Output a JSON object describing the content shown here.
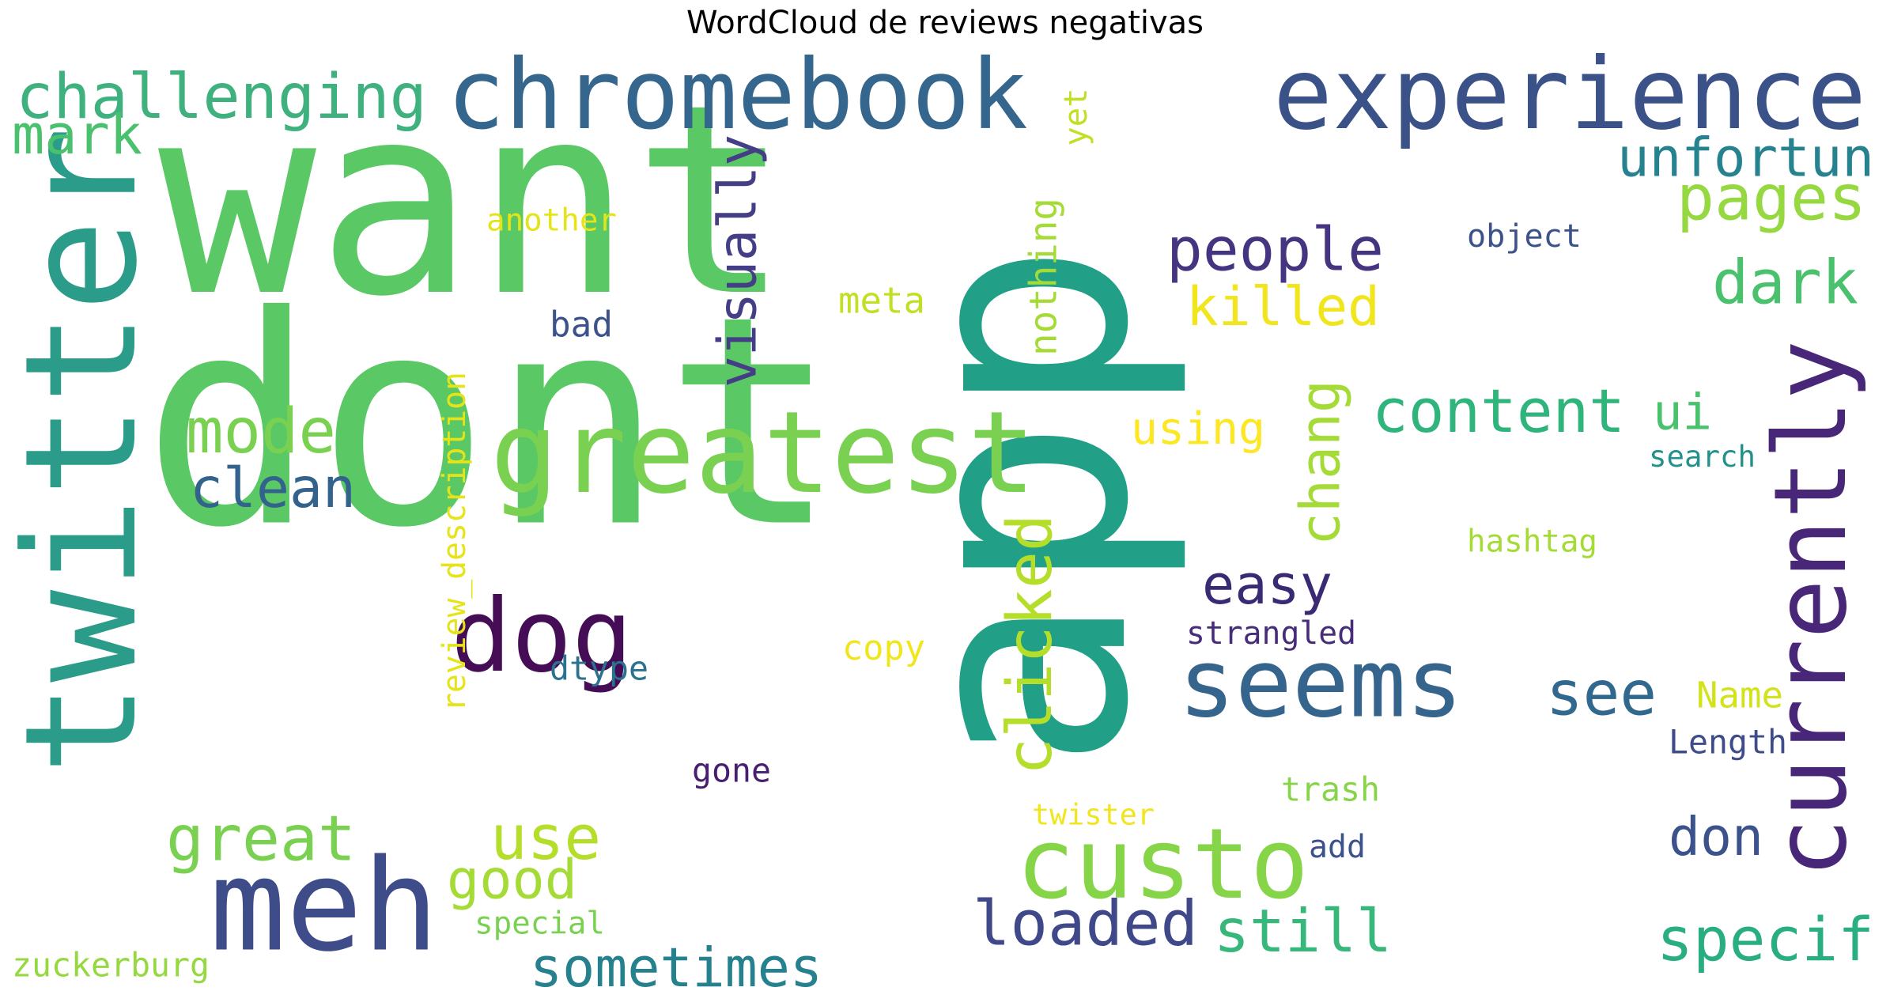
{
  "title": "WordCloud de reviews negativas",
  "colors": {
    "background": "#ffffff",
    "palette": "viridis"
  },
  "words": [
    {
      "text": "want",
      "color": "#5ac864",
      "orientation": "horizontal"
    },
    {
      "text": "dont",
      "color": "#5ac864",
      "orientation": "horizontal"
    },
    {
      "text": "app",
      "color": "#21a087",
      "orientation": "vertical"
    },
    {
      "text": "twitter",
      "color": "#2a9c89",
      "orientation": "vertical"
    },
    {
      "text": "dog",
      "color": "#440d56",
      "orientation": "horizontal"
    },
    {
      "text": "chromebook",
      "color": "#35668d",
      "orientation": "horizontal"
    },
    {
      "text": "experience",
      "color": "#3b5289",
      "orientation": "horizontal"
    },
    {
      "text": "greatest",
      "color": "#7ad151",
      "orientation": "horizontal"
    },
    {
      "text": "meh",
      "color": "#3e4c8a",
      "orientation": "horizontal"
    },
    {
      "text": "custo",
      "color": "#86d549",
      "orientation": "horizontal"
    },
    {
      "text": "seems",
      "color": "#35648c",
      "orientation": "horizontal"
    },
    {
      "text": "currently",
      "color": "#482779",
      "orientation": "vertical"
    },
    {
      "text": "challenging",
      "color": "#3eb17f",
      "orientation": "horizontal"
    },
    {
      "text": "people",
      "color": "#453581",
      "orientation": "horizontal"
    },
    {
      "text": "content",
      "color": "#2fb47c",
      "orientation": "horizontal"
    },
    {
      "text": "loaded",
      "color": "#3f4889",
      "orientation": "horizontal"
    },
    {
      "text": "still",
      "color": "#38b77b",
      "orientation": "horizontal"
    },
    {
      "text": "specif",
      "color": "#28ae80",
      "orientation": "horizontal"
    },
    {
      "text": "great",
      "color": "#7ad151",
      "orientation": "horizontal"
    },
    {
      "text": "use",
      "color": "#b5de2b",
      "orientation": "horizontal"
    },
    {
      "text": "pages",
      "color": "#95d840",
      "orientation": "horizontal"
    },
    {
      "text": "dark",
      "color": "#4ac16d",
      "orientation": "horizontal"
    },
    {
      "text": "mode",
      "color": "#7ad151",
      "orientation": "horizontal"
    },
    {
      "text": "clean",
      "color": "#33638d",
      "orientation": "horizontal"
    },
    {
      "text": "unfortun",
      "color": "#26828e",
      "orientation": "horizontal"
    },
    {
      "text": "killed",
      "color": "#f1e51d",
      "orientation": "horizontal"
    },
    {
      "text": "using",
      "color": "#fde725",
      "orientation": "horizontal"
    },
    {
      "text": "see",
      "color": "#31688e",
      "orientation": "horizontal"
    },
    {
      "text": "easy",
      "color": "#3a2a73",
      "orientation": "horizontal"
    },
    {
      "text": "good",
      "color": "#a5db36",
      "orientation": "horizontal"
    },
    {
      "text": "sometimes",
      "color": "#26818e",
      "orientation": "horizontal"
    },
    {
      "text": "don",
      "color": "#3b528b",
      "orientation": "horizontal"
    },
    {
      "text": "clicked",
      "color": "#b5de2b",
      "orientation": "vertical"
    },
    {
      "text": "chang",
      "color": "#a5db36",
      "orientation": "vertical"
    },
    {
      "text": "visually",
      "color": "#433e85",
      "orientation": "vertical"
    },
    {
      "text": "mark",
      "color": "#4ac16d",
      "orientation": "horizontal"
    },
    {
      "text": "ui",
      "color": "#4ac16d",
      "orientation": "horizontal"
    },
    {
      "text": "another",
      "color": "#e5e419",
      "orientation": "horizontal"
    },
    {
      "text": "meta",
      "color": "#c2df23",
      "orientation": "horizontal"
    },
    {
      "text": "bad",
      "color": "#3b528b",
      "orientation": "horizontal"
    },
    {
      "text": "object",
      "color": "#3b528b",
      "orientation": "horizontal"
    },
    {
      "text": "yet",
      "color": "#c2df23",
      "orientation": "vertical"
    },
    {
      "text": "nothing",
      "color": "#a5db36",
      "orientation": "vertical"
    },
    {
      "text": "review_description",
      "color": "#e5e419",
      "orientation": "vertical"
    },
    {
      "text": "search",
      "color": "#21918c",
      "orientation": "horizontal"
    },
    {
      "text": "hashtag",
      "color": "#a5db36",
      "orientation": "horizontal"
    },
    {
      "text": "strangled",
      "color": "#472c7a",
      "orientation": "horizontal"
    },
    {
      "text": "dtype",
      "color": "#2c728e",
      "orientation": "horizontal"
    },
    {
      "text": "copy",
      "color": "#f1e51d",
      "orientation": "horizontal"
    },
    {
      "text": "Name",
      "color": "#d2e21b",
      "orientation": "horizontal"
    },
    {
      "text": "Length",
      "color": "#3e4c8a",
      "orientation": "horizontal"
    },
    {
      "text": "gone",
      "color": "#481f70",
      "orientation": "horizontal"
    },
    {
      "text": "trash",
      "color": "#86d549",
      "orientation": "horizontal"
    },
    {
      "text": "twister",
      "color": "#f1e51d",
      "orientation": "horizontal"
    },
    {
      "text": "add",
      "color": "#3b528b",
      "orientation": "horizontal"
    },
    {
      "text": "special",
      "color": "#7ad151",
      "orientation": "horizontal"
    },
    {
      "text": "zuckerburg",
      "color": "#95d840",
      "orientation": "horizontal"
    }
  ]
}
